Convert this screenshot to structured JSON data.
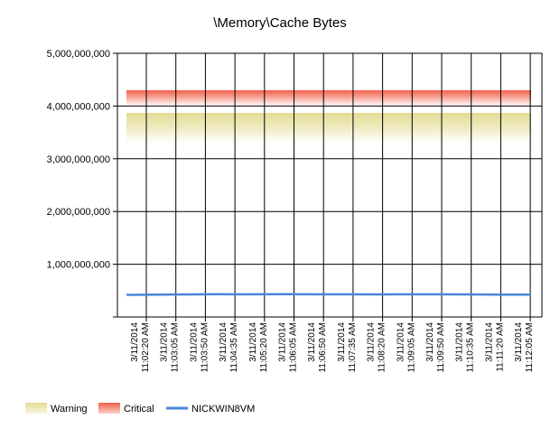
{
  "chart_data": {
    "type": "line",
    "title": "\\Memory\\Cache Bytes",
    "xlabel": "",
    "ylabel": "",
    "ylim": [
      0,
      5000000000
    ],
    "y_ticks": [
      1000000000,
      2000000000,
      3000000000,
      4000000000,
      5000000000
    ],
    "y_tick_labels": [
      "1,000,000,000",
      "2,000,000,000",
      "3,000,000,000",
      "4,000,000,000",
      "5,000,000,000"
    ],
    "grid": true,
    "legend_position": "bottom-left",
    "categories": [
      "3/11/2014 11:02:20 AM",
      "3/11/2014 11:03:05 AM",
      "3/11/2014 11:03:50 AM",
      "3/11/2014 11:04:35 AM",
      "3/11/2014 11:05:20 AM",
      "3/11/2014 11:06:05 AM",
      "3/11/2014 11:06:50 AM",
      "3/11/2014 11:07:35 AM",
      "3/11/2014 11:08:20 AM",
      "3/11/2014 11:09:05 AM",
      "3/11/2014 11:09:50 AM",
      "3/11/2014 11:10:35 AM",
      "3/11/2014 11:11:20 AM",
      "3/11/2014 11:12:05 AM"
    ],
    "tick_label_lines": [
      [
        "3/11/2014",
        "11:02:20 AM"
      ],
      [
        "3/11/2014",
        "11:03:05 AM"
      ],
      [
        "3/11/2014",
        "11:03:50 AM"
      ],
      [
        "3/11/2014",
        "11:04:35 AM"
      ],
      [
        "3/11/2014",
        "11:05:20 AM"
      ],
      [
        "3/11/2014",
        "11:06:05 AM"
      ],
      [
        "3/11/2014",
        "11:06:50 AM"
      ],
      [
        "3/11/2014",
        "11:07:35 AM"
      ],
      [
        "3/11/2014",
        "11:08:20 AM"
      ],
      [
        "3/11/2014",
        "11:09:05 AM"
      ],
      [
        "3/11/2014",
        "11:09:50 AM"
      ],
      [
        "3/11/2014",
        "11:10:35 AM"
      ],
      [
        "3/11/2014",
        "11:11:20 AM"
      ],
      [
        "3/11/2014",
        "11:12:05 AM"
      ]
    ],
    "series": [
      {
        "name": "NICKWIN8VM",
        "type": "line",
        "color": "#4a86d8",
        "values": [
          420000000,
          425000000,
          428000000,
          432000000,
          430000000,
          432000000,
          430000000,
          430000000,
          428000000,
          430000000,
          430000000,
          428000000,
          425000000,
          425000000
        ]
      }
    ],
    "thresholds": [
      {
        "name": "Critical",
        "range": [
          4000000000,
          4300000000
        ],
        "color": "#f0604a"
      },
      {
        "name": "Warning",
        "range": [
          3300000000,
          3870000000
        ],
        "color": "#e8e4a8"
      }
    ],
    "legend": [
      {
        "label": "Warning",
        "kind": "band",
        "color": "#e8e4a8"
      },
      {
        "label": "Critical",
        "kind": "band",
        "color": "#f0604a"
      },
      {
        "label": "NICKWIN8VM",
        "kind": "line",
        "color": "#4a86d8"
      }
    ]
  }
}
